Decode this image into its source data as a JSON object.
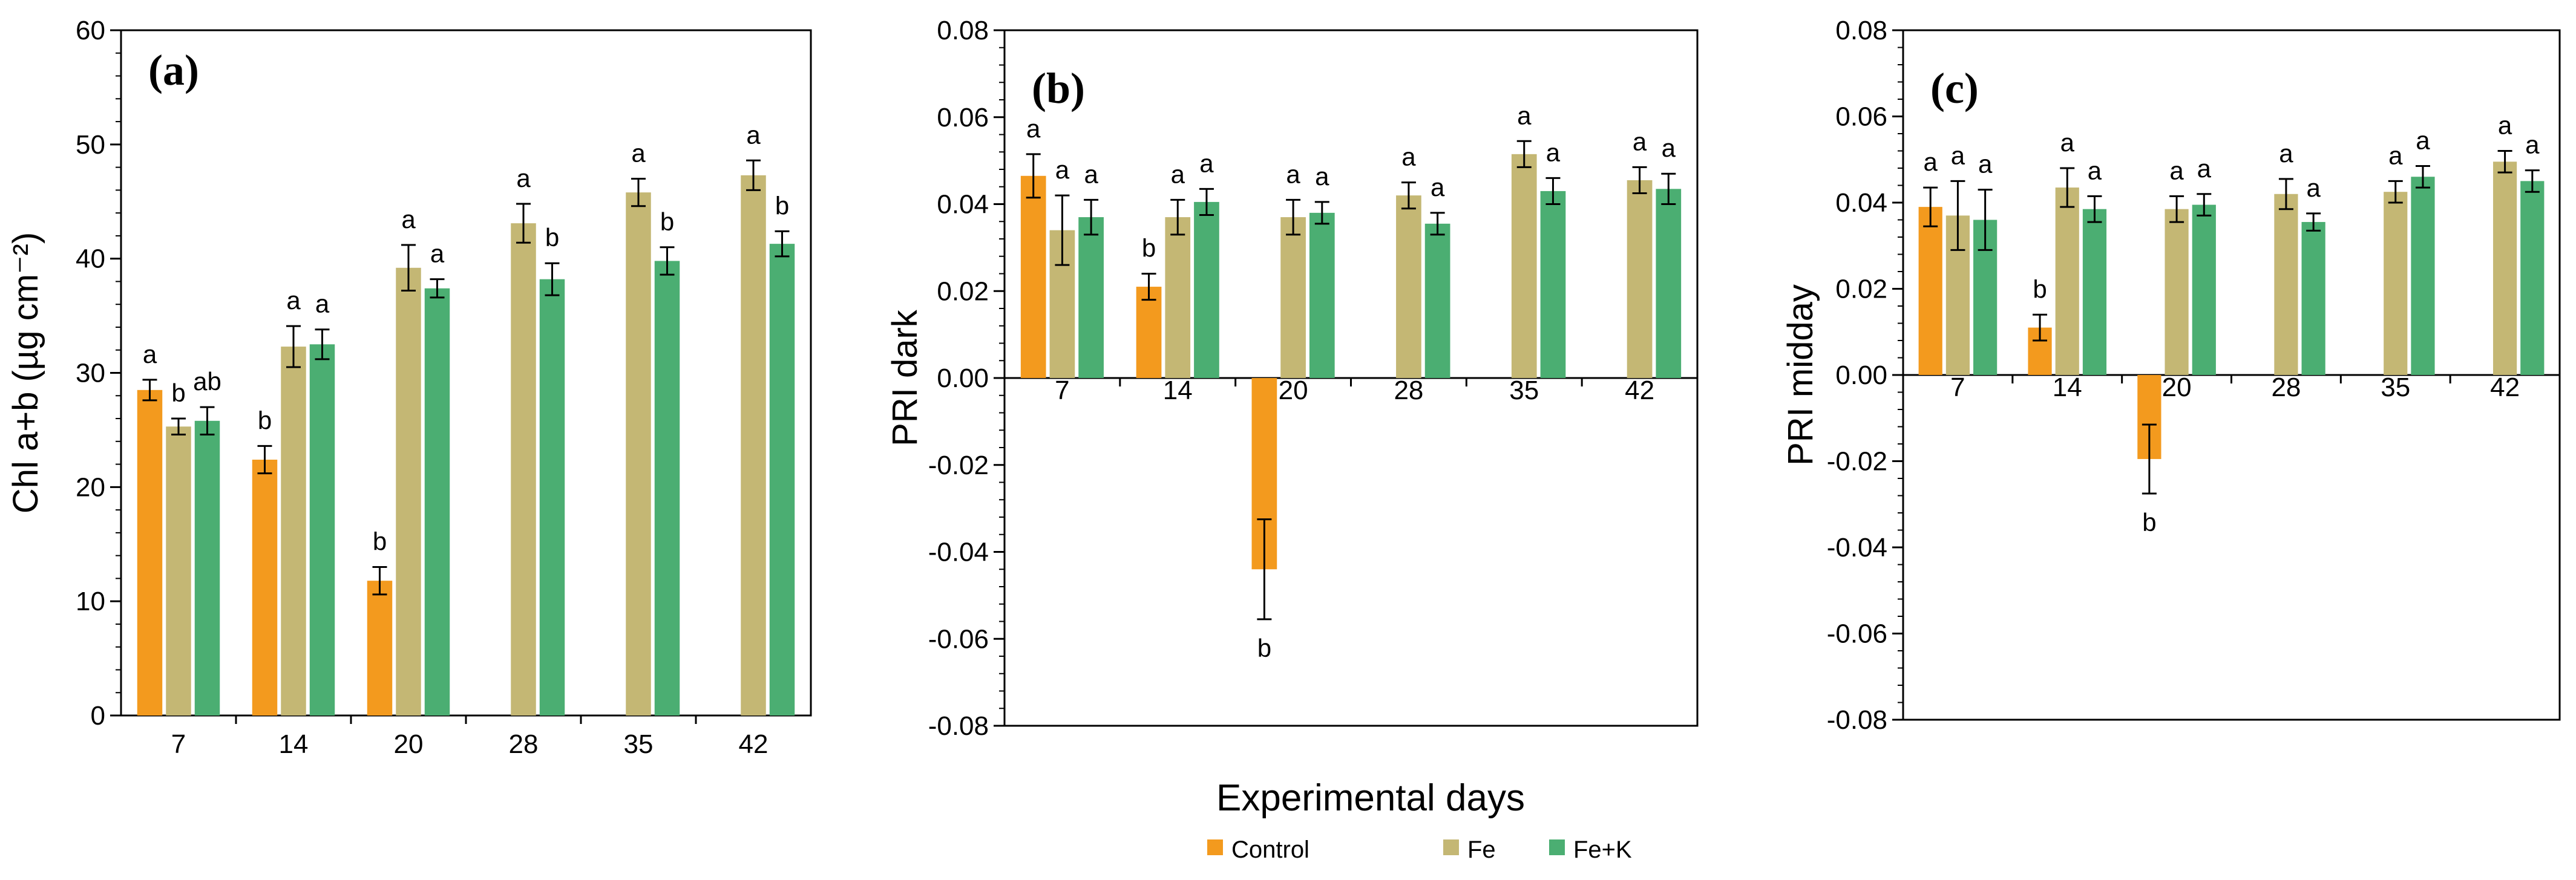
{
  "x_axis_title": "Experimental days",
  "legend": [
    {
      "label": "Control",
      "color": "#F39A1E"
    },
    {
      "label": "Fe",
      "color": "#C4B774"
    },
    {
      "label": "Fe+K",
      "color": "#4BAE72"
    }
  ],
  "chart_data": [
    {
      "type": "bar",
      "panel_label": "(a)",
      "ylabel": "Chl a+b (µg cm⁻²)",
      "xlabel": "Experimental days",
      "categories": [
        "7",
        "14",
        "20",
        "28",
        "35",
        "42"
      ],
      "ylim": [
        0,
        60
      ],
      "yticks": [
        0,
        10,
        20,
        30,
        40,
        50,
        60
      ],
      "ytick_labels": [
        "0",
        "10",
        "20",
        "30",
        "40",
        "50",
        "60"
      ],
      "series": [
        {
          "name": "Control",
          "color": "#F39A1E",
          "values": [
            28.5,
            22.4,
            11.8,
            null,
            null,
            null
          ],
          "errors": [
            0.9,
            1.2,
            1.2,
            null,
            null,
            null
          ],
          "letters": [
            "a",
            "b",
            "b",
            "",
            "",
            ""
          ]
        },
        {
          "name": "Fe",
          "color": "#C4B774",
          "values": [
            25.3,
            32.3,
            39.2,
            43.1,
            45.8,
            47.3
          ],
          "errors": [
            0.7,
            1.8,
            2.0,
            1.7,
            1.2,
            1.3
          ],
          "letters": [
            "b",
            "a",
            "a",
            "a",
            "a",
            "a"
          ]
        },
        {
          "name": "Fe+K",
          "color": "#4BAE72",
          "values": [
            25.8,
            32.5,
            37.4,
            38.2,
            39.8,
            41.3
          ],
          "errors": [
            1.2,
            1.3,
            0.8,
            1.4,
            1.2,
            1.1
          ],
          "letters": [
            "ab",
            "a",
            "a",
            "b",
            "b",
            "b"
          ]
        }
      ]
    },
    {
      "type": "bar",
      "panel_label": "(b)",
      "ylabel": "PRI dark",
      "xlabel": "Experimental days",
      "categories": [
        "7",
        "14",
        "20",
        "28",
        "35",
        "42"
      ],
      "ylim": [
        -0.08,
        0.08
      ],
      "yticks": [
        -0.08,
        -0.06,
        -0.04,
        -0.02,
        0,
        0.02,
        0.04,
        0.06,
        0.08
      ],
      "ytick_labels": [
        "-0.08",
        "-0.06",
        "-0.04",
        "-0.02",
        "0.00",
        "0.02",
        "0.04",
        "0.06",
        "0.08"
      ],
      "series": [
        {
          "name": "Control",
          "color": "#F39A1E",
          "values": [
            0.0465,
            0.021,
            -0.044,
            null,
            null,
            null
          ],
          "errors": [
            0.005,
            0.003,
            0.0115,
            null,
            null,
            null
          ],
          "letters": [
            "a",
            "b",
            "b",
            "",
            "",
            ""
          ]
        },
        {
          "name": "Fe",
          "color": "#C4B774",
          "values": [
            0.034,
            0.037,
            0.037,
            0.042,
            0.0515,
            0.0455
          ],
          "errors": [
            0.008,
            0.004,
            0.004,
            0.003,
            0.003,
            0.003
          ],
          "letters": [
            "a",
            "a",
            "a",
            "a",
            "a",
            "a"
          ]
        },
        {
          "name": "Fe+K",
          "color": "#4BAE72",
          "values": [
            0.037,
            0.0405,
            0.038,
            0.0355,
            0.043,
            0.0435
          ],
          "errors": [
            0.004,
            0.003,
            0.0025,
            0.0025,
            0.003,
            0.0035
          ],
          "letters": [
            "a",
            "a",
            "a",
            "a",
            "a",
            "a"
          ]
        }
      ]
    },
    {
      "type": "bar",
      "panel_label": "(c)",
      "ylabel": "PRI midday",
      "xlabel": "Experimental days",
      "categories": [
        "7",
        "14",
        "20",
        "28",
        "35",
        "42"
      ],
      "ylim": [
        -0.08,
        0.08
      ],
      "yticks": [
        -0.08,
        -0.06,
        -0.04,
        -0.02,
        0,
        0.02,
        0.04,
        0.06,
        0.08
      ],
      "ytick_labels": [
        "-0.08",
        "-0.06",
        "-0.04",
        "-0.02",
        "0.00",
        "0.02",
        "0.04",
        "0.06",
        "0.08"
      ],
      "series": [
        {
          "name": "Control",
          "color": "#F39A1E",
          "values": [
            0.039,
            0.011,
            -0.0195,
            null,
            null,
            null
          ],
          "errors": [
            0.0045,
            0.003,
            0.008,
            null,
            null,
            null
          ],
          "letters": [
            "a",
            "b",
            "b",
            "",
            "",
            ""
          ]
        },
        {
          "name": "Fe",
          "color": "#C4B774",
          "values": [
            0.037,
            0.0435,
            0.0385,
            0.042,
            0.0425,
            0.0495
          ],
          "errors": [
            0.008,
            0.0045,
            0.003,
            0.0035,
            0.0025,
            0.0025
          ],
          "letters": [
            "a",
            "a",
            "a",
            "a",
            "a",
            "a"
          ]
        },
        {
          "name": "Fe+K",
          "color": "#4BAE72",
          "values": [
            0.036,
            0.0385,
            0.0395,
            0.0355,
            0.046,
            0.045
          ],
          "errors": [
            0.007,
            0.003,
            0.0025,
            0.002,
            0.0025,
            0.0025
          ],
          "letters": [
            "a",
            "a",
            "a",
            "a",
            "a",
            "a"
          ]
        }
      ]
    }
  ]
}
